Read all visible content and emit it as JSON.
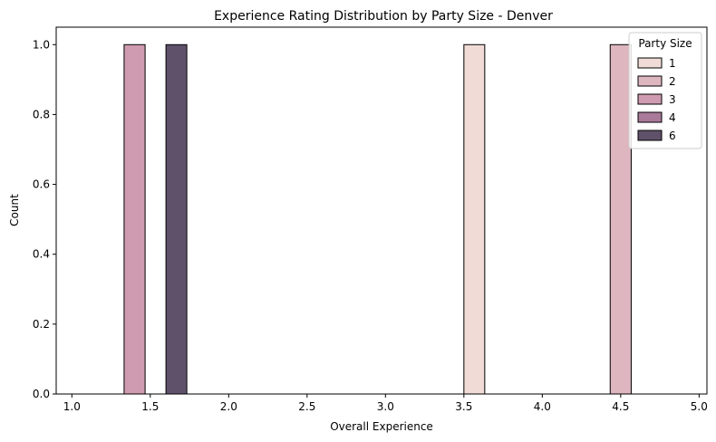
{
  "chart_data": {
    "type": "bar",
    "title": "Experience Rating Distribution by Party Size - Denver",
    "xlabel": "Overall Experience",
    "ylabel": "Count",
    "xlim": [
      0.9,
      5.05
    ],
    "ylim": [
      0,
      1.05
    ],
    "xticks": [
      "1.0",
      "1.5",
      "2.0",
      "2.5",
      "3.0",
      "3.5",
      "4.0",
      "4.5",
      "5.0"
    ],
    "xtick_values": [
      1.0,
      1.5,
      2.0,
      2.5,
      3.0,
      3.5,
      4.0,
      4.5,
      5.0
    ],
    "yticks": [
      "0.0",
      "0.2",
      "0.4",
      "0.6",
      "0.8",
      "1.0"
    ],
    "ytick_values": [
      0.0,
      0.2,
      0.4,
      0.6,
      0.8,
      1.0
    ],
    "grid": false,
    "legend": {
      "title": "Party Size",
      "placement": "top-right",
      "entries": [
        {
          "label": "1",
          "color": "#f0dbd6"
        },
        {
          "label": "2",
          "color": "#deb6bf"
        },
        {
          "label": "3",
          "color": "#cf9bb0"
        },
        {
          "label": "4",
          "color": "#a97a99"
        },
        {
          "label": "6",
          "color": "#5f5169"
        }
      ]
    },
    "series": [
      {
        "name": "1",
        "color": "#f0dbd6",
        "bars": [
          {
            "x0": 3.5,
            "x1": 3.633,
            "value": 1
          }
        ]
      },
      {
        "name": "2",
        "color": "#deb6bf",
        "bars": [
          {
            "x0": 4.433,
            "x1": 4.567,
            "value": 1
          }
        ]
      },
      {
        "name": "3",
        "color": "#cf9bb0",
        "bars": [
          {
            "x0": 1.333,
            "x1": 1.467,
            "value": 1
          }
        ]
      },
      {
        "name": "4",
        "color": "#a97a99",
        "bars": []
      },
      {
        "name": "6",
        "color": "#5f5169",
        "bars": [
          {
            "x0": 1.6,
            "x1": 1.733,
            "value": 1
          }
        ]
      }
    ],
    "zero_range": [
      1.0,
      5.0
    ]
  }
}
